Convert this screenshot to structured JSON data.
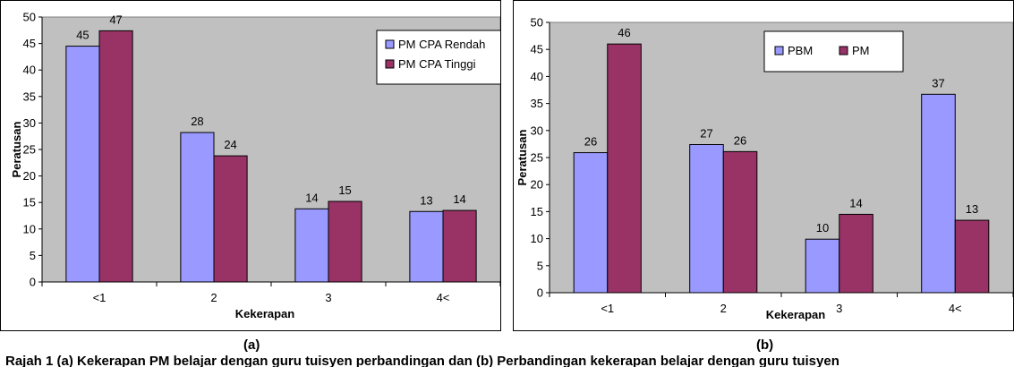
{
  "chart_data": [
    {
      "type": "bar",
      "label": "(a)",
      "categories": [
        "<1",
        "2",
        "3",
        "4<"
      ],
      "series": [
        {
          "name": "PM CPA Rendah",
          "color": "#9999ff",
          "values": [
            45,
            28,
            14,
            13
          ],
          "raw": [
            44.5,
            28.2,
            13.8,
            13.3
          ]
        },
        {
          "name": "PM CPA Tinggi",
          "color": "#993366",
          "values": [
            47,
            24,
            15,
            14
          ],
          "raw": [
            47.4,
            23.8,
            15.2,
            13.5
          ]
        }
      ],
      "xlabel": "Kekerapan",
      "ylabel": "Peratusan",
      "ylim": [
        0,
        50
      ],
      "ytick_step": 5,
      "grid": false,
      "plot_background": "#c0c0c0",
      "legend_position": "top-right"
    },
    {
      "type": "bar",
      "label": "(b)",
      "categories": [
        "<1",
        "2",
        "3",
        "4<"
      ],
      "series": [
        {
          "name": "PBM",
          "color": "#9999ff",
          "values": [
            26,
            27,
            10,
            37
          ],
          "raw": [
            25.9,
            27.4,
            9.9,
            36.7
          ]
        },
        {
          "name": "PM",
          "color": "#993366",
          "values": [
            46,
            26,
            14,
            13
          ],
          "raw": [
            46.0,
            26.1,
            14.5,
            13.4
          ]
        }
      ],
      "xlabel": "Kekerapan",
      "ylabel": "Peratusan",
      "ylim": [
        0,
        50
      ],
      "ytick_step": 5,
      "grid": false,
      "plot_background": "#c0c0c0",
      "legend_position": "top-center"
    }
  ],
  "caption": "Rajah 1 (a) Kekerapan PM belajar dengan guru tuisyen perbandingan dan (b) Perbandingan kekerapan belajar dengan guru tuisyen"
}
